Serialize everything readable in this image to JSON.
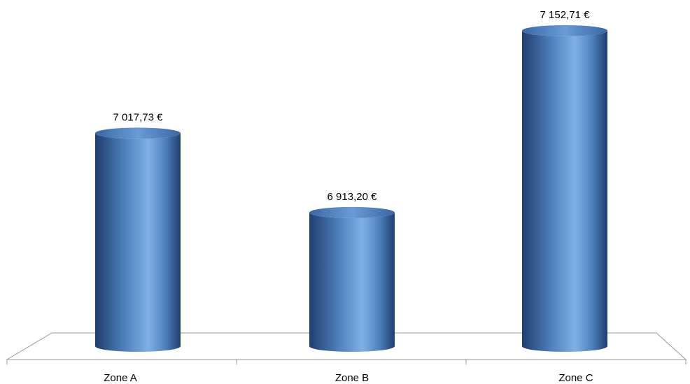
{
  "chart_data": {
    "type": "bar",
    "style": "3d-cylinder",
    "categories": [
      "Zone A",
      "Zone B",
      "Zone C"
    ],
    "values": [
      7017.73,
      6913.2,
      7152.71
    ],
    "value_labels": [
      "7 017,73 €",
      "6 913,20 €",
      "7 152,71 €"
    ],
    "ylim": [
      6737.13,
      7160
    ],
    "grid": false,
    "legend": "none",
    "title": "",
    "xlabel": "",
    "ylabel": "",
    "colors": {
      "bar": "#4f81bd",
      "bar_dark": "#1f3e6e",
      "bar_light": "#7fb0e6",
      "floor": "#9a9a9a"
    }
  }
}
